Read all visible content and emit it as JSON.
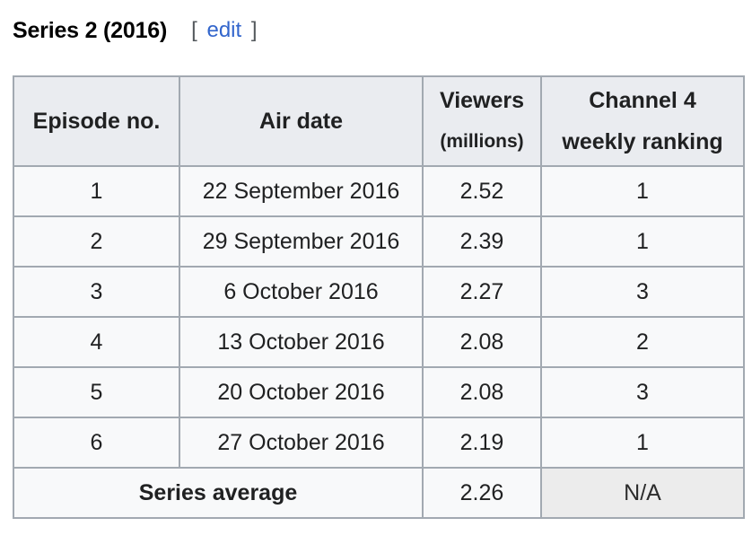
{
  "section": {
    "title": "Series 2 (2016)",
    "edit_open": "[",
    "edit_label": "edit",
    "edit_close": "]"
  },
  "table": {
    "headers": {
      "episode": "Episode no.",
      "air_date": "Air date",
      "viewers_line1": "Viewers",
      "viewers_line2": "(millions)",
      "ranking_line1": "Channel 4",
      "ranking_line2": "weekly ranking"
    },
    "rows": [
      {
        "episode": "1",
        "air_date": "22 September 2016",
        "viewers": "2.52",
        "ranking": "1"
      },
      {
        "episode": "2",
        "air_date": "29 September 2016",
        "viewers": "2.39",
        "ranking": "1"
      },
      {
        "episode": "3",
        "air_date": "6 October 2016",
        "viewers": "2.27",
        "ranking": "3"
      },
      {
        "episode": "4",
        "air_date": "13 October 2016",
        "viewers": "2.08",
        "ranking": "2"
      },
      {
        "episode": "5",
        "air_date": "20 October 2016",
        "viewers": "2.08",
        "ranking": "3"
      },
      {
        "episode": "6",
        "air_date": "27 October 2016",
        "viewers": "2.19",
        "ranking": "1"
      }
    ],
    "footer": {
      "label": "Series average",
      "viewers": "2.26",
      "ranking": "N/A"
    }
  }
}
